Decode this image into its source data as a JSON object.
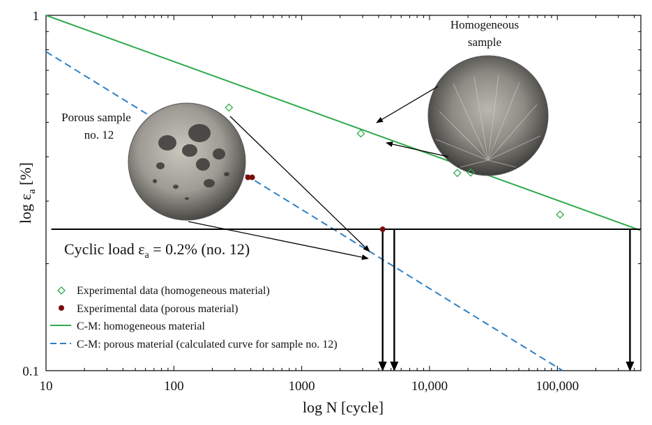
{
  "chart_data": {
    "type": "scatter",
    "x_scale": "log",
    "y_scale": "log",
    "xlim": [
      10,
      450000
    ],
    "ylim": [
      0.1,
      1
    ],
    "xlabel": "log N [cycle]",
    "ylabel": "log εa [%]",
    "ylabel_main": "log ε",
    "ylabel_sub": "a",
    "ylabel_tail": " [%]",
    "x_ticks": [
      {
        "value": 10,
        "label": "10"
      },
      {
        "value": 100,
        "label": "100"
      },
      {
        "value": 1000,
        "label": "1000"
      },
      {
        "value": 10000,
        "label": "10,000"
      },
      {
        "value": 100000,
        "label": "100,000"
      }
    ],
    "y_ticks": [
      {
        "value": 1,
        "label": "1"
      },
      {
        "value": 0.1,
        "label": "0.1"
      }
    ],
    "grid": false,
    "legend_position": "bottom-left",
    "series": [
      {
        "name": "Experimental data (homogeneous material)",
        "kind": "scatter",
        "marker": "diamond-open",
        "color": "#2eaa4a",
        "points": [
          [
            270,
            0.55
          ],
          [
            2900,
            0.465
          ],
          [
            16500,
            0.36
          ],
          [
            21000,
            0.361
          ],
          [
            105000,
            0.275
          ]
        ]
      },
      {
        "name": "Experimental data (porous material)",
        "kind": "scatter",
        "marker": "dot",
        "color": "#7a0c0c",
        "points": [
          [
            380,
            0.35
          ],
          [
            410,
            0.35
          ],
          [
            4300,
            0.25
          ]
        ]
      },
      {
        "name": "C-M: homogeneous material",
        "kind": "line",
        "style": "solid",
        "color": "#2eaa4a",
        "points": [
          [
            10,
            1.0
          ],
          [
            450000,
            0.248
          ]
        ]
      },
      {
        "name": "C-M: porous material (calculated curve for sample no. 12)",
        "kind": "line",
        "style": "dashed",
        "color": "#2e7fc4",
        "points": [
          [
            10,
            0.79
          ],
          [
            110000,
            0.1
          ]
        ]
      }
    ],
    "cyclic_load": {
      "label_main": "Cyclic load ε",
      "label_sub": "a",
      "label_tail": " = 0.2% (no. 12)",
      "y": 0.25,
      "x_start": 11,
      "x_end": 450000,
      "drop_arrows_x": [
        4300,
        5300,
        370000
      ]
    },
    "annotations": {
      "homogeneous_title": [
        "Homogeneous",
        "sample"
      ],
      "porous_title": [
        "Porous sample",
        "no. 12"
      ]
    }
  }
}
